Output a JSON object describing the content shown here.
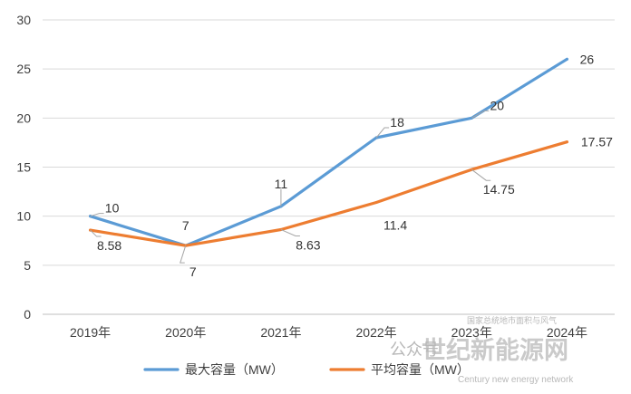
{
  "chart_data": {
    "type": "line",
    "categories": [
      "2019年",
      "2020年",
      "2021年",
      "2022年",
      "2023年",
      "2024年"
    ],
    "ylim": [
      0,
      30
    ],
    "yticks": [
      0,
      5,
      10,
      15,
      20,
      25,
      30
    ],
    "grid": true,
    "legend_position": "bottom",
    "series": [
      {
        "name": "最大容量（MW）",
        "color": "#5B9BD5",
        "values": [
          10,
          7,
          11,
          18,
          20,
          26
        ],
        "labels": [
          "10",
          "7",
          "11",
          "18",
          "20",
          "26"
        ]
      },
      {
        "name": "平均容量（MW）",
        "color": "#ED7D31",
        "values": [
          8.58,
          7,
          8.63,
          11.4,
          14.75,
          17.57
        ],
        "labels": [
          "8.58",
          "7",
          "8.63",
          "11.4",
          "14.75",
          "17.57"
        ]
      }
    ]
  },
  "watermark": {
    "line1": "国家总统地市面积与风气",
    "line2": "公众号",
    "line3": "世纪新能源网",
    "line4": "Century new energy network"
  }
}
